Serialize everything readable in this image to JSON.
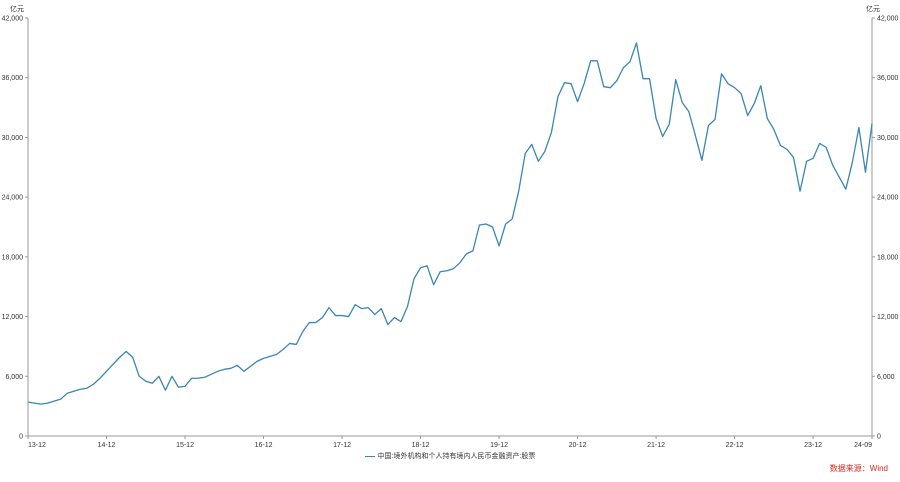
{
  "chart_data": {
    "type": "line",
    "units_left": "亿元",
    "units_right": "亿元",
    "yticks": [
      0,
      6000,
      12000,
      18000,
      24000,
      30000,
      36000,
      42000
    ],
    "ytick_labels": [
      "0",
      "6,000",
      "12,000",
      "18,000",
      "24,000",
      "30,000",
      "36,000",
      "42,000"
    ],
    "ylim": [
      0,
      42000
    ],
    "xtick_labels": [
      "13-12",
      "14-12",
      "15-12",
      "16-12",
      "17-12",
      "18-12",
      "19-12",
      "20-12",
      "21-12",
      "22-12",
      "23-12",
      "24-09"
    ],
    "x_start": "2013-12",
    "x_end": "2024-09",
    "series": [
      {
        "name": "中国:境外机构和个人持有境内人民币金融资产:股票",
        "color": "#3a86b4",
        "points": [
          [
            "2013-12",
            3400
          ],
          [
            "2014-01",
            3300
          ],
          [
            "2014-02",
            3200
          ],
          [
            "2014-03",
            3300
          ],
          [
            "2014-04",
            3500
          ],
          [
            "2014-05",
            3700
          ],
          [
            "2014-06",
            4300
          ],
          [
            "2014-07",
            4500
          ],
          [
            "2014-08",
            4700
          ],
          [
            "2014-09",
            4800
          ],
          [
            "2014-10",
            5200
          ],
          [
            "2014-11",
            5800
          ],
          [
            "2014-12",
            6500
          ],
          [
            "2015-01",
            7200
          ],
          [
            "2015-02",
            7900
          ],
          [
            "2015-03",
            8500
          ],
          [
            "2015-04",
            7900
          ],
          [
            "2015-05",
            6000
          ],
          [
            "2015-06",
            5500
          ],
          [
            "2015-07",
            5300
          ],
          [
            "2015-08",
            6000
          ],
          [
            "2015-09",
            4600
          ],
          [
            "2015-10",
            6000
          ],
          [
            "2015-11",
            4900
          ],
          [
            "2015-12",
            5000
          ],
          [
            "2016-01",
            5800
          ],
          [
            "2016-02",
            5800
          ],
          [
            "2016-03",
            5900
          ],
          [
            "2016-04",
            6200
          ],
          [
            "2016-05",
            6500
          ],
          [
            "2016-06",
            6700
          ],
          [
            "2016-07",
            6800
          ],
          [
            "2016-08",
            7100
          ],
          [
            "2016-09",
            6500
          ],
          [
            "2016-10",
            7000
          ],
          [
            "2016-11",
            7500
          ],
          [
            "2016-12",
            7800
          ],
          [
            "2017-01",
            8000
          ],
          [
            "2017-02",
            8200
          ],
          [
            "2017-03",
            8700
          ],
          [
            "2017-04",
            9300
          ],
          [
            "2017-05",
            9200
          ],
          [
            "2017-06",
            10500
          ],
          [
            "2017-07",
            11400
          ],
          [
            "2017-08",
            11400
          ],
          [
            "2017-09",
            11900
          ],
          [
            "2017-10",
            12900
          ],
          [
            "2017-11",
            12100
          ],
          [
            "2017-12",
            12100
          ],
          [
            "2018-01",
            12000
          ],
          [
            "2018-02",
            13200
          ],
          [
            "2018-03",
            12800
          ],
          [
            "2018-04",
            12900
          ],
          [
            "2018-05",
            12200
          ],
          [
            "2018-06",
            12800
          ],
          [
            "2018-07",
            11200
          ],
          [
            "2018-08",
            11900
          ],
          [
            "2018-09",
            11500
          ],
          [
            "2018-10",
            13000
          ],
          [
            "2018-11",
            15800
          ],
          [
            "2018-12",
            16900
          ],
          [
            "2019-01",
            17100
          ],
          [
            "2019-02",
            15200
          ],
          [
            "2019-03",
            16500
          ],
          [
            "2019-04",
            16600
          ],
          [
            "2019-05",
            16800
          ],
          [
            "2019-06",
            17400
          ],
          [
            "2019-07",
            18300
          ],
          [
            "2019-08",
            18600
          ],
          [
            "2019-09",
            21200
          ],
          [
            "2019-10",
            21300
          ],
          [
            "2019-11",
            21000
          ],
          [
            "2019-12",
            19100
          ],
          [
            "2020-01",
            21300
          ],
          [
            "2020-02",
            21800
          ],
          [
            "2020-03",
            24600
          ],
          [
            "2020-04",
            28400
          ],
          [
            "2020-05",
            29300
          ],
          [
            "2020-06",
            27600
          ],
          [
            "2020-07",
            28600
          ],
          [
            "2020-08",
            30500
          ],
          [
            "2020-09",
            34100
          ],
          [
            "2020-10",
            35500
          ],
          [
            "2020-11",
            35400
          ],
          [
            "2020-12",
            33600
          ],
          [
            "2021-01",
            35400
          ],
          [
            "2021-02",
            37700
          ],
          [
            "2021-03",
            37700
          ],
          [
            "2021-04",
            35100
          ],
          [
            "2021-05",
            35000
          ],
          [
            "2021-06",
            35700
          ],
          [
            "2021-07",
            37000
          ],
          [
            "2021-08",
            37600
          ],
          [
            "2021-09",
            39500
          ],
          [
            "2021-10",
            35900
          ],
          [
            "2021-11",
            35900
          ],
          [
            "2021-12",
            31900
          ],
          [
            "2022-01",
            30100
          ],
          [
            "2022-02",
            31300
          ],
          [
            "2022-03",
            35800
          ],
          [
            "2022-04",
            33500
          ],
          [
            "2022-05",
            32600
          ],
          [
            "2022-06",
            30200
          ],
          [
            "2022-07",
            27700
          ],
          [
            "2022-08",
            31200
          ],
          [
            "2022-09",
            31800
          ],
          [
            "2022-10",
            36400
          ],
          [
            "2022-11",
            35400
          ],
          [
            "2022-12",
            35000
          ],
          [
            "2023-01",
            34400
          ],
          [
            "2023-02",
            32200
          ],
          [
            "2023-03",
            33400
          ],
          [
            "2023-04",
            35200
          ],
          [
            "2023-05",
            31900
          ],
          [
            "2023-06",
            30800
          ],
          [
            "2023-07",
            29200
          ],
          [
            "2023-08",
            28800
          ],
          [
            "2023-09",
            28000
          ],
          [
            "2023-10",
            24600
          ],
          [
            "2023-11",
            27600
          ],
          [
            "2023-12",
            27900
          ],
          [
            "2024-01",
            29400
          ],
          [
            "2024-02",
            29000
          ],
          [
            "2024-03",
            27200
          ],
          [
            "2024-04",
            26000
          ],
          [
            "2024-05",
            24800
          ],
          [
            "2024-06",
            27500
          ],
          [
            "2024-07",
            31000
          ],
          [
            "2024-08",
            26500
          ],
          [
            "2024-09",
            31400
          ]
        ]
      }
    ],
    "grid": false,
    "legend_position": "bottom-center"
  },
  "source_note": "数据来源：Wind"
}
